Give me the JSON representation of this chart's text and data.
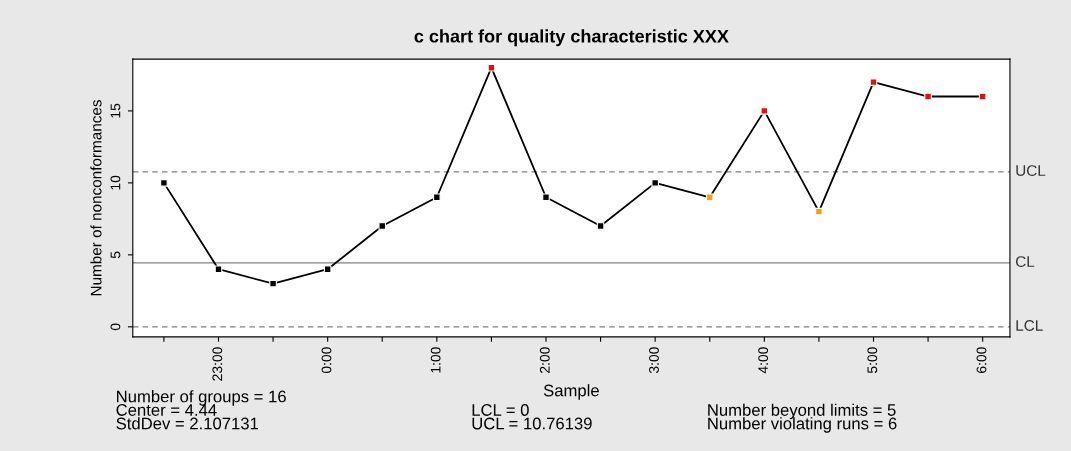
{
  "chart_data": {
    "type": "line",
    "title": "c chart for quality characteristic XXX",
    "xlabel": "Sample",
    "ylabel": "Number of nonconformances",
    "categories": [
      null,
      "23:00",
      null,
      "0:00",
      null,
      "1:00",
      null,
      "2:00",
      null,
      "3:00",
      null,
      "4:00",
      null,
      "5:00",
      null,
      "6:00"
    ],
    "series": [
      {
        "color": "#000000",
        "values": [
          10,
          4,
          3,
          4,
          7,
          9,
          18,
          9,
          7,
          10,
          9,
          15,
          8,
          17,
          16,
          16
        ],
        "colors": [
          "#000000",
          "#000000",
          "#000000",
          "#000000",
          "#000000",
          "#000000",
          "#e01010",
          "#000000",
          "#000000",
          "#000000",
          "#f0a020",
          "#e01010",
          "#f0a020",
          "#e01010",
          "#e01010",
          "#e01010"
        ]
      }
    ],
    "marker": "square",
    "line_style": "solid",
    "ylim": [
      -0.7,
      18.6
    ],
    "yticks": [
      0,
      5,
      10,
      15
    ],
    "grid": false,
    "legend": false,
    "ref_lines": [
      {
        "axis": "y",
        "value": 10.76139,
        "label": "UCL",
        "line_style": "dashed",
        "color": "#808080"
      },
      {
        "axis": "y",
        "value": 4.44,
        "label": "CL",
        "line_style": "solid",
        "color": "#808080"
      },
      {
        "axis": "y",
        "value": 0,
        "label": "LCL",
        "line_style": "dashed",
        "color": "#808080"
      }
    ],
    "annotations": [
      "Number of groups = 16",
      "Center = 4.44",
      "StdDev = 2.107131",
      "LCL = 0",
      "UCL = 10.76139",
      "Number beyond limits = 5",
      "Number violating runs = 6"
    ]
  }
}
